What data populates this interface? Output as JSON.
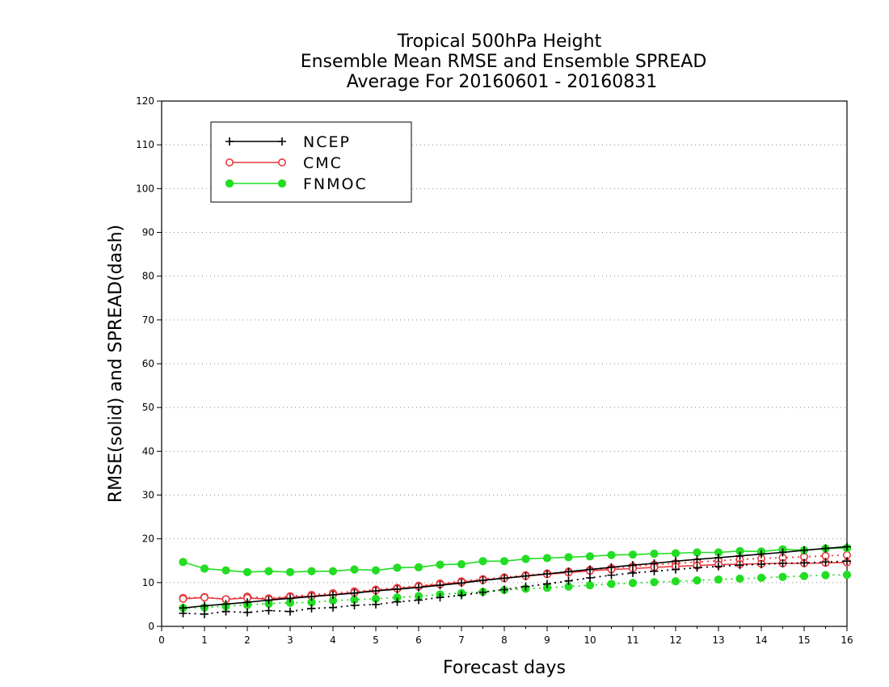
{
  "chart_data": {
    "type": "line",
    "title_lines": [
      "Tropical 500hPa Height",
      "Ensemble Mean RMSE and Ensemble SPREAD",
      "Average For 20160601 - 20160831"
    ],
    "xlabel": "Forecast days",
    "ylabel": "RMSE(solid) and SPREAD(dash)",
    "xlim": [
      0,
      16
    ],
    "ylim": [
      0,
      120
    ],
    "xticks": [
      0,
      1,
      2,
      3,
      4,
      5,
      6,
      7,
      8,
      9,
      10,
      11,
      12,
      13,
      14,
      15,
      16
    ],
    "yticks": [
      0,
      10,
      20,
      30,
      40,
      50,
      60,
      70,
      80,
      90,
      100,
      110,
      120
    ],
    "grid": "horizontal dotted",
    "legend_position": "top-left",
    "x": [
      0.5,
      1,
      1.5,
      2,
      2.5,
      3,
      3.5,
      4,
      4.5,
      5,
      5.5,
      6,
      6.5,
      7,
      7.5,
      8,
      8.5,
      9,
      9.5,
      10,
      10.5,
      11,
      11.5,
      12,
      12.5,
      13,
      13.5,
      14,
      14.5,
      15,
      15.5,
      16
    ],
    "series": [
      {
        "name": "NCEP",
        "color": "#000000",
        "marker": "plus",
        "rmse": [
          4.2,
          4.7,
          5.1,
          5.5,
          6.0,
          6.4,
          6.8,
          7.2,
          7.6,
          8.1,
          8.5,
          8.9,
          9.4,
          9.9,
          10.5,
          11.0,
          11.5,
          12.0,
          12.5,
          13.0,
          13.5,
          14.0,
          14.4,
          14.9,
          15.3,
          15.7,
          16.1,
          16.5,
          16.9,
          17.4,
          17.8,
          18.2
        ],
        "spread": [
          3.0,
          2.8,
          3.4,
          3.2,
          3.6,
          3.4,
          4.1,
          4.3,
          4.8,
          5.0,
          5.6,
          6.0,
          6.6,
          7.1,
          7.8,
          8.4,
          9.1,
          9.7,
          10.4,
          11.1,
          11.7,
          12.2,
          12.6,
          13.0,
          13.4,
          13.7,
          14.0,
          14.2,
          14.4,
          14.5,
          14.7,
          14.9
        ]
      },
      {
        "name": "CMC",
        "color": "#e8383d",
        "marker": "open-circle",
        "rmse": [
          6.3,
          6.6,
          6.2,
          6.5,
          6.2,
          6.7,
          6.9,
          7.3,
          7.7,
          8.2,
          8.6,
          9.1,
          9.6,
          10.1,
          10.6,
          11.0,
          11.5,
          11.9,
          12.3,
          12.7,
          13.0,
          13.2,
          13.5,
          13.7,
          13.9,
          14.1,
          14.2,
          14.3,
          14.4,
          14.4,
          14.5,
          14.6
        ],
        "spread": [
          6.5,
          6.7,
          6.2,
          6.8,
          6.4,
          6.9,
          7.2,
          7.6,
          8.0,
          8.4,
          8.8,
          9.3,
          9.8,
          10.3,
          10.8,
          11.2,
          11.7,
          12.1,
          12.5,
          12.9,
          13.3,
          13.7,
          14.1,
          14.4,
          14.7,
          15.0,
          15.3,
          15.5,
          15.7,
          15.9,
          16.1,
          16.3
        ]
      },
      {
        "name": "FNMOC",
        "color": "#22dd22",
        "marker": "filled-circle",
        "rmse": [
          14.7,
          13.2,
          12.8,
          12.4,
          12.6,
          12.4,
          12.6,
          12.6,
          13.0,
          12.8,
          13.4,
          13.5,
          14.1,
          14.2,
          14.9,
          14.9,
          15.4,
          15.6,
          15.8,
          16.0,
          16.3,
          16.4,
          16.6,
          16.7,
          16.9,
          16.9,
          17.2,
          17.1,
          17.6,
          17.4,
          17.8,
          17.9
        ],
        "spread": [
          4.2,
          4.3,
          4.6,
          4.9,
          5.2,
          5.4,
          5.5,
          5.9,
          6.1,
          6.3,
          6.6,
          6.9,
          7.3,
          7.6,
          7.9,
          8.3,
          8.6,
          8.8,
          9.1,
          9.4,
          9.7,
          9.9,
          10.1,
          10.3,
          10.5,
          10.7,
          10.9,
          11.1,
          11.3,
          11.5,
          11.7,
          11.8
        ]
      }
    ]
  }
}
